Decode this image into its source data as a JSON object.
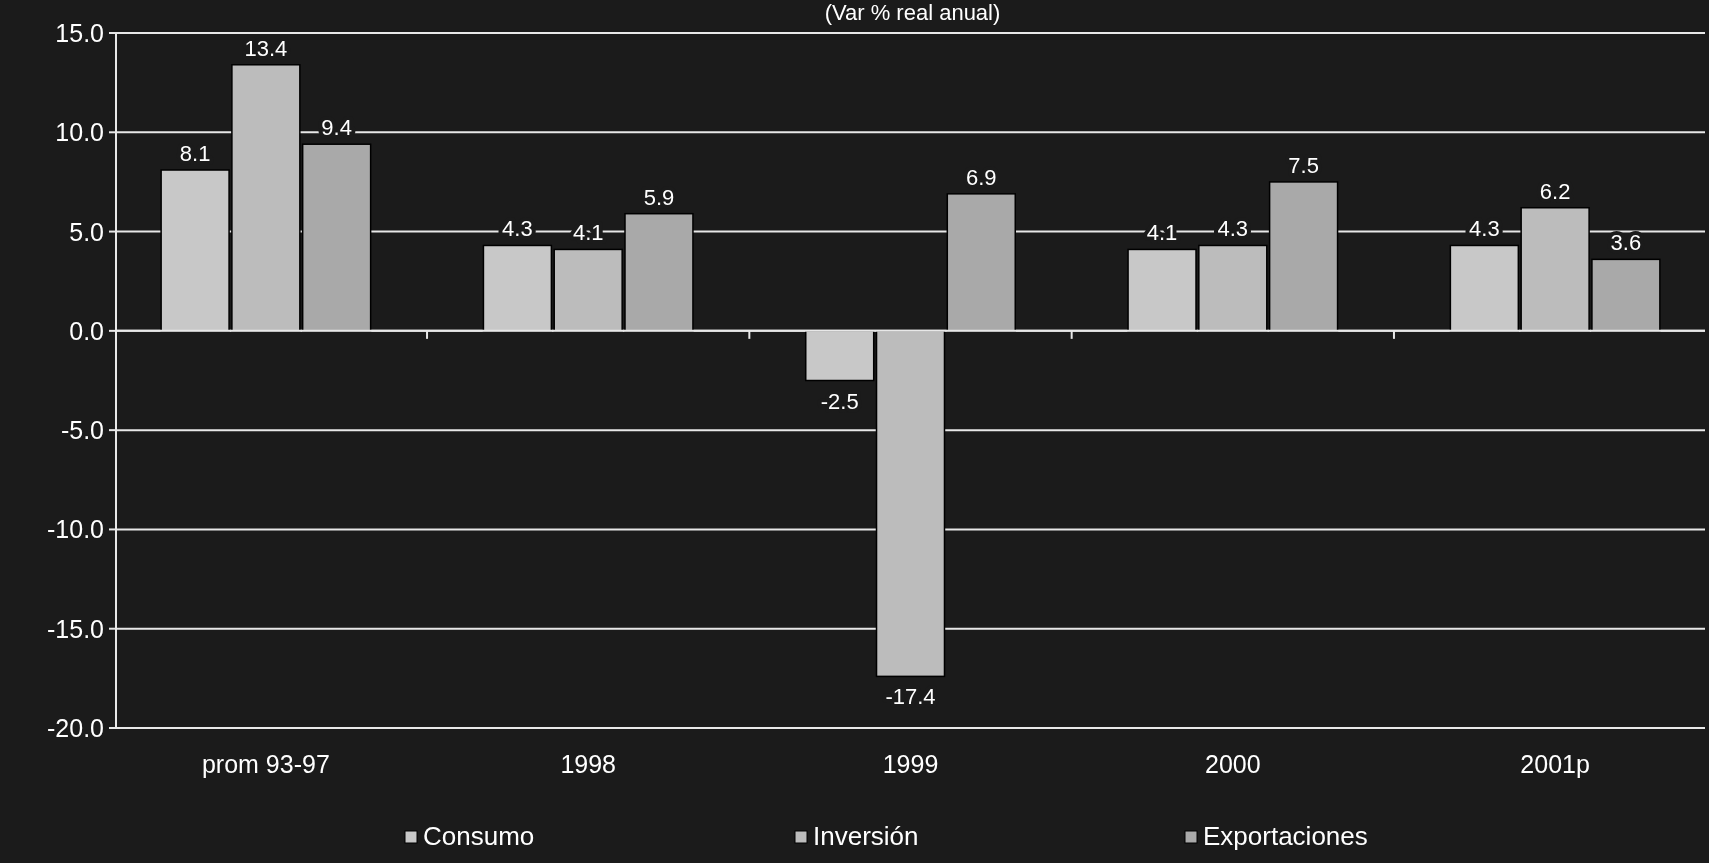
{
  "chart_data": {
    "type": "bar",
    "title": "(Var % real anual)",
    "categories": [
      "prom 93-97",
      "1998",
      "1999",
      "2000",
      "2001p"
    ],
    "series": [
      {
        "name": "Consumo",
        "color": "#c8c8c8",
        "values": [
          8.1,
          4.3,
          -2.5,
          4.1,
          4.3
        ]
      },
      {
        "name": "Inversión",
        "color": "#bcbcbc",
        "values": [
          13.4,
          4.1,
          -17.4,
          4.3,
          6.2
        ]
      },
      {
        "name": "Exportaciones",
        "color": "#a9a9a9",
        "values": [
          9.4,
          5.9,
          6.9,
          7.5,
          3.6
        ]
      }
    ],
    "ylim": [
      -20,
      15
    ],
    "yticks": [
      {
        "value": -20,
        "label": "-20.0"
      },
      {
        "value": -15,
        "label": "-15.0"
      },
      {
        "value": -10,
        "label": "-10.0"
      },
      {
        "value": -5,
        "label": "-5.0"
      },
      {
        "value": 0,
        "label": "0.0"
      },
      {
        "value": 5,
        "label": "5.0"
      },
      {
        "value": 10,
        "label": "10.0"
      },
      {
        "value": 15,
        "label": "15.0"
      }
    ],
    "grid": "y",
    "legend": "bottom",
    "data_labels": true
  }
}
